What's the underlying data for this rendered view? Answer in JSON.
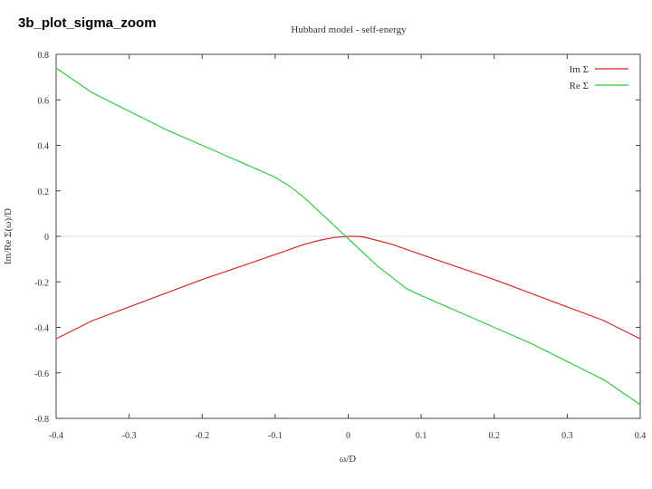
{
  "slide": {
    "caption": "3b_plot_sigma_zoom"
  },
  "chart_data": {
    "type": "line",
    "title": "Hubbard model - self-energy",
    "xlabel": "ω/D",
    "ylabel": "Im/Re Σ(ω)/D",
    "xlim": [
      -0.4,
      0.4
    ],
    "ylim": [
      -0.8,
      0.8
    ],
    "xticks": [
      -0.4,
      -0.3,
      -0.2,
      -0.1,
      0,
      0.1,
      0.2,
      0.3,
      0.4
    ],
    "xtick_labels": [
      "-0.4",
      "-0.3",
      "-0.2",
      "-0.1",
      "0",
      "0.1",
      "0.2",
      "0.3",
      "0.4"
    ],
    "yticks": [
      -0.8,
      -0.6,
      -0.4,
      -0.2,
      0,
      0.2,
      0.4,
      0.6,
      0.8
    ],
    "ytick_labels": [
      "-0.8",
      "-0.6",
      "-0.4",
      "-0.2",
      "0",
      "0.2",
      "0.4",
      "0.6",
      "0.8"
    ],
    "grid": false,
    "zero_line": true,
    "legend_position": "top-right",
    "series": [
      {
        "name": "Im Σ",
        "color": "#d62728",
        "x": [
          -0.4,
          -0.35,
          -0.3,
          -0.25,
          -0.2,
          -0.15,
          -0.1,
          -0.06,
          -0.04,
          -0.02,
          0,
          0.01,
          0.02,
          0.04,
          0.06,
          0.1,
          0.15,
          0.2,
          0.25,
          0.3,
          0.35,
          0.4
        ],
        "y": [
          -0.45,
          -0.37,
          -0.31,
          -0.25,
          -0.19,
          -0.135,
          -0.08,
          -0.035,
          -0.018,
          -0.005,
          0,
          0,
          -0.002,
          -0.018,
          -0.035,
          -0.08,
          -0.135,
          -0.19,
          -0.25,
          -0.31,
          -0.37,
          -0.45
        ]
      },
      {
        "name": "Re Σ",
        "color": "#2ecc40",
        "x": [
          -0.4,
          -0.35,
          -0.3,
          -0.25,
          -0.2,
          -0.15,
          -0.1,
          -0.08,
          -0.06,
          -0.04,
          -0.02,
          0,
          0.02,
          0.04,
          0.06,
          0.08,
          0.1,
          0.15,
          0.2,
          0.25,
          0.3,
          0.35,
          0.4
        ],
        "y": [
          0.74,
          0.63,
          0.55,
          0.47,
          0.4,
          0.33,
          0.26,
          0.22,
          0.17,
          0.11,
          0.05,
          -0.01,
          -0.07,
          -0.13,
          -0.18,
          -0.23,
          -0.26,
          -0.33,
          -0.4,
          -0.47,
          -0.55,
          -0.63,
          -0.74
        ]
      }
    ]
  }
}
